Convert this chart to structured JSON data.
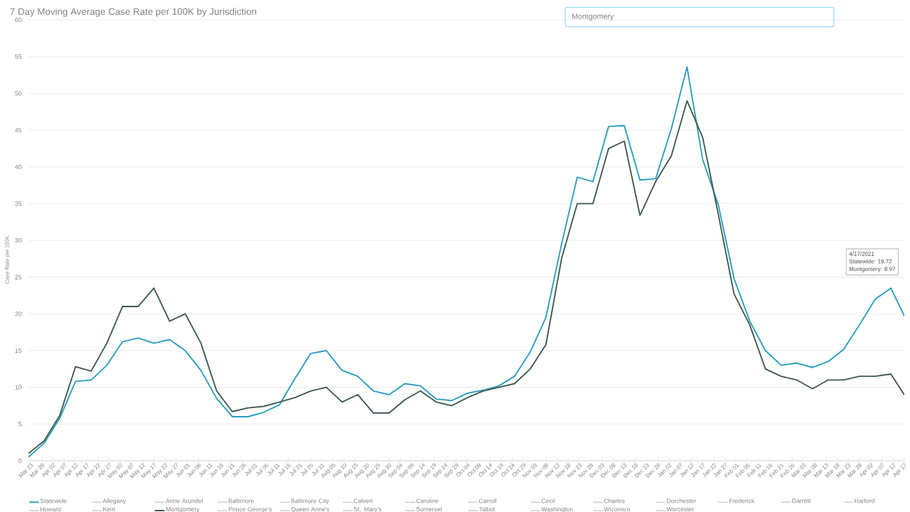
{
  "chart_data": {
    "type": "line",
    "title": "7 Day Moving Average Case Rate per 100K by Jurisdiction",
    "ylabel": "Case Rate per 100K",
    "annotations": [
      "Montgomery",
      "4/17/2021",
      "Statewide: 19.72",
      "Montgomery: 8.97"
    ],
    "x": [
      "2020-03-22",
      "2020-03-29",
      "2020-04-05",
      "2020-04-12",
      "2020-04-19",
      "2020-04-26",
      "2020-05-03",
      "2020-05-10",
      "2020-05-17",
      "2020-05-24",
      "2020-05-31",
      "2020-06-07",
      "2020-06-14",
      "2020-06-21",
      "2020-06-28",
      "2020-07-05",
      "2020-07-12",
      "2020-07-19",
      "2020-07-26",
      "2020-08-02",
      "2020-08-09",
      "2020-08-16",
      "2020-08-23",
      "2020-08-30",
      "2020-09-06",
      "2020-09-13",
      "2020-09-20",
      "2020-09-27",
      "2020-10-04",
      "2020-10-11",
      "2020-10-18",
      "2020-10-25",
      "2020-11-01",
      "2020-11-08",
      "2020-11-15",
      "2020-11-22",
      "2020-11-29",
      "2020-12-06",
      "2020-12-13",
      "2020-12-20",
      "2020-12-27",
      "2021-01-03",
      "2021-01-10",
      "2021-01-17",
      "2021-01-24",
      "2021-01-31",
      "2021-02-07",
      "2021-02-14",
      "2021-02-21",
      "2021-02-28",
      "2021-03-07",
      "2021-03-14",
      "2021-03-21",
      "2021-03-28",
      "2021-04-04",
      "2021-04-11",
      "2021-04-17"
    ],
    "series": [
      {
        "name": "Statewide",
        "color": "#2a9cc0",
        "values": [
          0.5,
          2.4,
          5.8,
          10.8,
          11.0,
          13.0,
          16.2,
          16.7,
          16.0,
          16.5,
          15.0,
          12.3,
          8.5,
          6.0,
          6.0,
          6.6,
          7.6,
          11.2,
          14.6,
          15.0,
          12.3,
          11.5,
          9.5,
          9.0,
          10.5,
          10.2,
          8.4,
          8.2,
          9.2,
          9.6,
          10.2,
          11.5,
          14.8,
          19.5,
          29.5,
          38.6,
          38.0,
          45.5,
          45.6,
          38.2,
          38.4,
          45.2,
          53.6,
          41.0,
          34.8,
          24.8,
          19.0,
          15.0,
          13.0,
          13.3,
          12.7,
          13.5,
          15.2,
          18.5,
          22.0,
          23.5,
          19.72
        ]
      },
      {
        "name": "Allegany",
        "color": "#c8c8c8",
        "values": [
          null,
          null,
          null,
          null,
          null,
          null,
          null,
          null,
          null,
          null,
          null,
          null,
          null,
          null,
          null,
          null,
          null,
          null,
          null,
          null,
          null,
          null,
          null,
          null,
          null,
          null,
          null,
          null,
          null,
          null,
          null,
          null,
          null,
          null,
          null,
          null,
          null,
          null,
          null,
          null,
          null,
          null,
          null,
          null,
          null,
          null,
          null,
          null,
          null,
          null,
          null,
          null,
          null,
          null,
          null,
          null,
          null
        ]
      },
      {
        "name": "Anne Arundel",
        "color": "#c8c8c8",
        "values": [
          null,
          null,
          null,
          null,
          null,
          null,
          null,
          null,
          null,
          null,
          null,
          null,
          null,
          null,
          null,
          null,
          null,
          null,
          null,
          null,
          null,
          null,
          null,
          null,
          null,
          null,
          null,
          null,
          null,
          null,
          null,
          null,
          null,
          null,
          null,
          null,
          null,
          null,
          null,
          null,
          null,
          null,
          null,
          null,
          null,
          null,
          null,
          null,
          null,
          null,
          null,
          null,
          null,
          null,
          null,
          null,
          null
        ]
      },
      {
        "name": "Baltimore",
        "color": "#c8c8c8",
        "values": [
          null,
          null,
          null,
          null,
          null,
          null,
          null,
          null,
          null,
          null,
          null,
          null,
          null,
          null,
          null,
          null,
          null,
          null,
          null,
          null,
          null,
          null,
          null,
          null,
          null,
          null,
          null,
          null,
          null,
          null,
          null,
          null,
          null,
          null,
          null,
          null,
          null,
          null,
          null,
          null,
          null,
          null,
          null,
          null,
          null,
          null,
          null,
          null,
          null,
          null,
          null,
          null,
          null,
          null,
          null,
          null,
          null
        ]
      },
      {
        "name": "Baltimore City",
        "color": "#c8c8c8",
        "values": [
          null,
          null,
          null,
          null,
          null,
          null,
          null,
          null,
          null,
          null,
          null,
          null,
          null,
          null,
          null,
          null,
          null,
          null,
          null,
          null,
          null,
          null,
          null,
          null,
          null,
          null,
          null,
          null,
          null,
          null,
          null,
          null,
          null,
          null,
          null,
          null,
          null,
          null,
          null,
          null,
          null,
          null,
          null,
          null,
          null,
          null,
          null,
          null,
          null,
          null,
          null,
          null,
          null,
          null,
          null,
          null,
          null
        ]
      },
      {
        "name": "Calvert",
        "color": "#c8c8c8",
        "values": [
          null,
          null,
          null,
          null,
          null,
          null,
          null,
          null,
          null,
          null,
          null,
          null,
          null,
          null,
          null,
          null,
          null,
          null,
          null,
          null,
          null,
          null,
          null,
          null,
          null,
          null,
          null,
          null,
          null,
          null,
          null,
          null,
          null,
          null,
          null,
          null,
          null,
          null,
          null,
          null,
          null,
          null,
          null,
          null,
          null,
          null,
          null,
          null,
          null,
          null,
          null,
          null,
          null,
          null,
          null,
          null,
          null
        ]
      },
      {
        "name": "Caroline",
        "color": "#c8c8c8",
        "values": [
          null,
          null,
          null,
          null,
          null,
          null,
          null,
          null,
          null,
          null,
          null,
          null,
          null,
          null,
          null,
          null,
          null,
          null,
          null,
          null,
          null,
          null,
          null,
          null,
          null,
          null,
          null,
          null,
          null,
          null,
          null,
          null,
          null,
          null,
          null,
          null,
          null,
          null,
          null,
          null,
          null,
          null,
          null,
          null,
          null,
          null,
          null,
          null,
          null,
          null,
          null,
          null,
          null,
          null,
          null,
          null,
          null
        ]
      },
      {
        "name": "Carroll",
        "color": "#c8c8c8",
        "values": [
          null,
          null,
          null,
          null,
          null,
          null,
          null,
          null,
          null,
          null,
          null,
          null,
          null,
          null,
          null,
          null,
          null,
          null,
          null,
          null,
          null,
          null,
          null,
          null,
          null,
          null,
          null,
          null,
          null,
          null,
          null,
          null,
          null,
          null,
          null,
          null,
          null,
          null,
          null,
          null,
          null,
          null,
          null,
          null,
          null,
          null,
          null,
          null,
          null,
          null,
          null,
          null,
          null,
          null,
          null,
          null,
          null
        ]
      },
      {
        "name": "Cecil",
        "color": "#c8c8c8",
        "values": [
          null,
          null,
          null,
          null,
          null,
          null,
          null,
          null,
          null,
          null,
          null,
          null,
          null,
          null,
          null,
          null,
          null,
          null,
          null,
          null,
          null,
          null,
          null,
          null,
          null,
          null,
          null,
          null,
          null,
          null,
          null,
          null,
          null,
          null,
          null,
          null,
          null,
          null,
          null,
          null,
          null,
          null,
          null,
          null,
          null,
          null,
          null,
          null,
          null,
          null,
          null,
          null,
          null,
          null,
          null,
          null,
          null
        ]
      },
      {
        "name": "Charles",
        "color": "#c8c8c8",
        "values": [
          null,
          null,
          null,
          null,
          null,
          null,
          null,
          null,
          null,
          null,
          null,
          null,
          null,
          null,
          null,
          null,
          null,
          null,
          null,
          null,
          null,
          null,
          null,
          null,
          null,
          null,
          null,
          null,
          null,
          null,
          null,
          null,
          null,
          null,
          null,
          null,
          null,
          null,
          null,
          null,
          null,
          null,
          null,
          null,
          null,
          null,
          null,
          null,
          null,
          null,
          null,
          null,
          null,
          null,
          null,
          null,
          null
        ]
      },
      {
        "name": "Dorchester",
        "color": "#c8c8c8",
        "values": [
          null,
          null,
          null,
          null,
          null,
          null,
          null,
          null,
          null,
          null,
          null,
          null,
          null,
          null,
          null,
          null,
          null,
          null,
          null,
          null,
          null,
          null,
          null,
          null,
          null,
          null,
          null,
          null,
          null,
          null,
          null,
          null,
          null,
          null,
          null,
          null,
          null,
          null,
          null,
          null,
          null,
          null,
          null,
          null,
          null,
          null,
          null,
          null,
          null,
          null,
          null,
          null,
          null,
          null,
          null,
          null,
          null
        ]
      },
      {
        "name": "Frederick",
        "color": "#c8c8c8",
        "values": [
          null,
          null,
          null,
          null,
          null,
          null,
          null,
          null,
          null,
          null,
          null,
          null,
          null,
          null,
          null,
          null,
          null,
          null,
          null,
          null,
          null,
          null,
          null,
          null,
          null,
          null,
          null,
          null,
          null,
          null,
          null,
          null,
          null,
          null,
          null,
          null,
          null,
          null,
          null,
          null,
          null,
          null,
          null,
          null,
          null,
          null,
          null,
          null,
          null,
          null,
          null,
          null,
          null,
          null,
          null,
          null,
          null
        ]
      },
      {
        "name": "Garrett",
        "color": "#c8c8c8",
        "values": [
          null,
          null,
          null,
          null,
          null,
          null,
          null,
          null,
          null,
          null,
          null,
          null,
          null,
          null,
          null,
          null,
          null,
          null,
          null,
          null,
          null,
          null,
          null,
          null,
          null,
          null,
          null,
          null,
          null,
          null,
          null,
          null,
          null,
          null,
          null,
          null,
          null,
          null,
          null,
          null,
          null,
          null,
          null,
          null,
          null,
          null,
          null,
          null,
          null,
          null,
          null,
          null,
          null,
          null,
          null,
          null,
          null
        ]
      },
      {
        "name": "Harford",
        "color": "#c8c8c8",
        "values": [
          null,
          null,
          null,
          null,
          null,
          null,
          null,
          null,
          null,
          null,
          null,
          null,
          null,
          null,
          null,
          null,
          null,
          null,
          null,
          null,
          null,
          null,
          null,
          null,
          null,
          null,
          null,
          null,
          null,
          null,
          null,
          null,
          null,
          null,
          null,
          null,
          null,
          null,
          null,
          null,
          null,
          null,
          null,
          null,
          null,
          null,
          null,
          null,
          null,
          null,
          null,
          null,
          null,
          null,
          null,
          null,
          null
        ]
      },
      {
        "name": "Howard",
        "color": "#c8c8c8",
        "values": [
          null,
          null,
          null,
          null,
          null,
          null,
          null,
          null,
          null,
          null,
          null,
          null,
          null,
          null,
          null,
          null,
          null,
          null,
          null,
          null,
          null,
          null,
          null,
          null,
          null,
          null,
          null,
          null,
          null,
          null,
          null,
          null,
          null,
          null,
          null,
          null,
          null,
          null,
          null,
          null,
          null,
          null,
          null,
          null,
          null,
          null,
          null,
          null,
          null,
          null,
          null,
          null,
          null,
          null,
          null,
          null,
          null
        ]
      },
      {
        "name": "Kent",
        "color": "#c8c8c8",
        "values": [
          null,
          null,
          null,
          null,
          null,
          null,
          null,
          null,
          null,
          null,
          null,
          null,
          null,
          null,
          null,
          null,
          null,
          null,
          null,
          null,
          null,
          null,
          null,
          null,
          null,
          null,
          null,
          null,
          null,
          null,
          null,
          null,
          null,
          null,
          null,
          null,
          null,
          null,
          null,
          null,
          null,
          null,
          null,
          null,
          null,
          null,
          null,
          null,
          null,
          null,
          null,
          null,
          null,
          null,
          null,
          null,
          null
        ]
      },
      {
        "name": "Montgomery",
        "color": "#3d5a50",
        "values": [
          1.0,
          2.7,
          6.2,
          12.8,
          12.2,
          16.0,
          21.0,
          21.0,
          23.5,
          19.0,
          20.0,
          16.0,
          9.5,
          6.7,
          7.2,
          7.4,
          8.0,
          8.6,
          9.5,
          10.0,
          8.0,
          9.0,
          6.5,
          6.5,
          8.3,
          9.5,
          8.0,
          7.5,
          8.6,
          9.5,
          10.0,
          10.5,
          12.5,
          15.8,
          27.5,
          35.0,
          35.0,
          42.5,
          43.5,
          33.4,
          38.0,
          41.5,
          49.0,
          44.0,
          33.5,
          22.7,
          18.5,
          12.5,
          11.5,
          11.0,
          9.8,
          11.0,
          11.0,
          11.5,
          11.5,
          11.8,
          8.97
        ]
      },
      {
        "name": "Prince George's",
        "color": "#c8c8c8",
        "values": [
          null,
          null,
          null,
          null,
          null,
          null,
          null,
          null,
          null,
          null,
          null,
          null,
          null,
          null,
          null,
          null,
          null,
          null,
          null,
          null,
          null,
          null,
          null,
          null,
          null,
          null,
          null,
          null,
          null,
          null,
          null,
          null,
          null,
          null,
          null,
          null,
          null,
          null,
          null,
          null,
          null,
          null,
          null,
          null,
          null,
          null,
          null,
          null,
          null,
          null,
          null,
          null,
          null,
          null,
          null,
          null,
          null
        ]
      },
      {
        "name": "Queen Anne's",
        "color": "#c8c8c8",
        "values": [
          null,
          null,
          null,
          null,
          null,
          null,
          null,
          null,
          null,
          null,
          null,
          null,
          null,
          null,
          null,
          null,
          null,
          null,
          null,
          null,
          null,
          null,
          null,
          null,
          null,
          null,
          null,
          null,
          null,
          null,
          null,
          null,
          null,
          null,
          null,
          null,
          null,
          null,
          null,
          null,
          null,
          null,
          null,
          null,
          null,
          null,
          null,
          null,
          null,
          null,
          null,
          null,
          null,
          null,
          null,
          null,
          null
        ]
      },
      {
        "name": "St. Mary's",
        "color": "#c8c8c8",
        "values": [
          null,
          null,
          null,
          null,
          null,
          null,
          null,
          null,
          null,
          null,
          null,
          null,
          null,
          null,
          null,
          null,
          null,
          null,
          null,
          null,
          null,
          null,
          null,
          null,
          null,
          null,
          null,
          null,
          null,
          null,
          null,
          null,
          null,
          null,
          null,
          null,
          null,
          null,
          null,
          null,
          null,
          null,
          null,
          null,
          null,
          null,
          null,
          null,
          null,
          null,
          null,
          null,
          null,
          null,
          null,
          null,
          null
        ]
      },
      {
        "name": "Somerset",
        "color": "#c8c8c8",
        "values": [
          null,
          null,
          null,
          null,
          null,
          null,
          null,
          null,
          null,
          null,
          null,
          null,
          null,
          null,
          null,
          null,
          null,
          null,
          null,
          null,
          null,
          null,
          null,
          null,
          null,
          null,
          null,
          null,
          null,
          null,
          null,
          null,
          null,
          null,
          null,
          null,
          null,
          null,
          null,
          null,
          null,
          null,
          null,
          null,
          null,
          null,
          null,
          null,
          null,
          null,
          null,
          null,
          null,
          null,
          null,
          null,
          null
        ]
      },
      {
        "name": "Talbot",
        "color": "#c8c8c8",
        "values": [
          null,
          null,
          null,
          null,
          null,
          null,
          null,
          null,
          null,
          null,
          null,
          null,
          null,
          null,
          null,
          null,
          null,
          null,
          null,
          null,
          null,
          null,
          null,
          null,
          null,
          null,
          null,
          null,
          null,
          null,
          null,
          null,
          null,
          null,
          null,
          null,
          null,
          null,
          null,
          null,
          null,
          null,
          null,
          null,
          null,
          null,
          null,
          null,
          null,
          null,
          null,
          null,
          null,
          null,
          null,
          null,
          null
        ]
      },
      {
        "name": "Washington",
        "color": "#c8c8c8",
        "values": [
          null,
          null,
          null,
          null,
          null,
          null,
          null,
          null,
          null,
          null,
          null,
          null,
          null,
          null,
          null,
          null,
          null,
          null,
          null,
          null,
          null,
          null,
          null,
          null,
          null,
          null,
          null,
          null,
          null,
          null,
          null,
          null,
          null,
          null,
          null,
          null,
          null,
          null,
          null,
          null,
          null,
          null,
          null,
          null,
          null,
          null,
          null,
          null,
          null,
          null,
          null,
          null,
          null,
          null,
          null,
          null,
          null
        ]
      },
      {
        "name": "Wicomico",
        "color": "#c8c8c8",
        "values": [
          null,
          null,
          null,
          null,
          null,
          null,
          null,
          null,
          null,
          null,
          null,
          null,
          null,
          null,
          null,
          null,
          null,
          null,
          null,
          null,
          null,
          null,
          null,
          null,
          null,
          null,
          null,
          null,
          null,
          null,
          null,
          null,
          null,
          null,
          null,
          null,
          null,
          null,
          null,
          null,
          null,
          null,
          null,
          null,
          null,
          null,
          null,
          null,
          null,
          null,
          null,
          null,
          null,
          null,
          null,
          null,
          null
        ]
      },
      {
        "name": "Worcester",
        "color": "#c8c8c8",
        "values": [
          null,
          null,
          null,
          null,
          null,
          null,
          null,
          null,
          null,
          null,
          null,
          null,
          null,
          null,
          null,
          null,
          null,
          null,
          null,
          null,
          null,
          null,
          null,
          null,
          null,
          null,
          null,
          null,
          null,
          null,
          null,
          null,
          null,
          null,
          null,
          null,
          null,
          null,
          null,
          null,
          null,
          null,
          null,
          null,
          null,
          null,
          null,
          null,
          null,
          null,
          null,
          null,
          null,
          null,
          null,
          null,
          null
        ]
      }
    ],
    "xlim": [
      "2020-03-22",
      "2021-04-17"
    ],
    "xticks": [
      {
        "value": "2020-03-23",
        "label": "Mar 23"
      },
      {
        "value": "2020-03-28",
        "label": "Mar 28"
      },
      {
        "value": "2020-04-02",
        "label": "Apr 02"
      },
      {
        "value": "2020-04-07",
        "label": "Apr 07"
      },
      {
        "value": "2020-04-12",
        "label": "Apr 12"
      },
      {
        "value": "2020-04-17",
        "label": "Apr 17"
      },
      {
        "value": "2020-04-22",
        "label": "Apr 22"
      },
      {
        "value": "2020-04-27",
        "label": "Apr 27"
      },
      {
        "value": "2020-05-02",
        "label": "May 02"
      },
      {
        "value": "2020-05-07",
        "label": "May 07"
      },
      {
        "value": "2020-05-12",
        "label": "May 12"
      },
      {
        "value": "2020-05-17",
        "label": "May 17"
      },
      {
        "value": "2020-05-22",
        "label": "May 22"
      },
      {
        "value": "2020-05-27",
        "label": "May 27"
      },
      {
        "value": "2020-06-01",
        "label": "Jun 01"
      },
      {
        "value": "2020-06-06",
        "label": "Jun 06"
      },
      {
        "value": "2020-06-11",
        "label": "Jun 11"
      },
      {
        "value": "2020-06-16",
        "label": "Jun 16"
      },
      {
        "value": "2020-06-21",
        "label": "Jun 21"
      },
      {
        "value": "2020-06-26",
        "label": "Jun 26"
      },
      {
        "value": "2020-07-01",
        "label": "Jul 01"
      },
      {
        "value": "2020-07-06",
        "label": "Jul 06"
      },
      {
        "value": "2020-07-11",
        "label": "Jul 11"
      },
      {
        "value": "2020-07-16",
        "label": "Jul 16"
      },
      {
        "value": "2020-07-21",
        "label": "Jul 21"
      },
      {
        "value": "2020-07-26",
        "label": "Jul 26"
      },
      {
        "value": "2020-07-31",
        "label": "Jul 31"
      },
      {
        "value": "2020-08-05",
        "label": "Aug 05"
      },
      {
        "value": "2020-08-10",
        "label": "Aug 10"
      },
      {
        "value": "2020-08-15",
        "label": "Aug 15"
      },
      {
        "value": "2020-08-20",
        "label": "Aug 20"
      },
      {
        "value": "2020-08-25",
        "label": "Aug 25"
      },
      {
        "value": "2020-08-30",
        "label": "Aug 30"
      },
      {
        "value": "2020-09-04",
        "label": "Sep 04"
      },
      {
        "value": "2020-09-09",
        "label": "Sep 09"
      },
      {
        "value": "2020-09-14",
        "label": "Sep 14"
      },
      {
        "value": "2020-09-19",
        "label": "Sep 19"
      },
      {
        "value": "2020-09-24",
        "label": "Sep 24"
      },
      {
        "value": "2020-09-29",
        "label": "Sep 29"
      },
      {
        "value": "2020-10-04",
        "label": "Oct 04"
      },
      {
        "value": "2020-10-09",
        "label": "Oct 09"
      },
      {
        "value": "2020-10-14",
        "label": "Oct 14"
      },
      {
        "value": "2020-10-19",
        "label": "Oct 19"
      },
      {
        "value": "2020-10-24",
        "label": "Oct 24"
      },
      {
        "value": "2020-10-29",
        "label": "Oct 29"
      },
      {
        "value": "2020-11-03",
        "label": "Nov 03"
      },
      {
        "value": "2020-11-08",
        "label": "Nov 08"
      },
      {
        "value": "2020-11-13",
        "label": "Nov 13"
      },
      {
        "value": "2020-11-18",
        "label": "Nov 18"
      },
      {
        "value": "2020-11-23",
        "label": "Nov 23"
      },
      {
        "value": "2020-11-28",
        "label": "Nov 28"
      },
      {
        "value": "2020-12-03",
        "label": "Dec 03"
      },
      {
        "value": "2020-12-08",
        "label": "Dec 08"
      },
      {
        "value": "2020-12-13",
        "label": "Dec 13"
      },
      {
        "value": "2020-12-18",
        "label": "Dec 18"
      },
      {
        "value": "2020-12-23",
        "label": "Dec 23"
      },
      {
        "value": "2020-12-28",
        "label": "Dec 28"
      },
      {
        "value": "2021-01-02",
        "label": "Jan 02"
      },
      {
        "value": "2021-01-07",
        "label": "Jan 07"
      },
      {
        "value": "2021-01-12",
        "label": "Jan 12"
      },
      {
        "value": "2021-01-17",
        "label": "Jan 17"
      },
      {
        "value": "2021-01-22",
        "label": "Jan 22"
      },
      {
        "value": "2021-01-27",
        "label": "Jan 27"
      },
      {
        "value": "2021-02-01",
        "label": "Feb 01"
      },
      {
        "value": "2021-02-06",
        "label": "Feb 06"
      },
      {
        "value": "2021-02-11",
        "label": "Feb 11"
      },
      {
        "value": "2021-02-16",
        "label": "Feb 16"
      },
      {
        "value": "2021-02-21",
        "label": "Feb 21"
      },
      {
        "value": "2021-02-26",
        "label": "Feb 26"
      },
      {
        "value": "2021-03-03",
        "label": "Mar 03"
      },
      {
        "value": "2021-03-08",
        "label": "Mar 08"
      },
      {
        "value": "2021-03-13",
        "label": "Mar 13"
      },
      {
        "value": "2021-03-18",
        "label": "Mar 18"
      },
      {
        "value": "2021-03-23",
        "label": "Mar 23"
      },
      {
        "value": "2021-03-28",
        "label": "Mar 28"
      },
      {
        "value": "2021-04-02",
        "label": "Apr 02"
      },
      {
        "value": "2021-04-07",
        "label": "Apr 07"
      },
      {
        "value": "2021-04-12",
        "label": "Apr 12"
      },
      {
        "value": "2021-04-17",
        "label": "Apr 17"
      }
    ],
    "ylim": [
      0,
      60
    ],
    "yticks": [
      0,
      5,
      10,
      15,
      20,
      25,
      30,
      35,
      40,
      45,
      50,
      55,
      60
    ],
    "grid": "y",
    "legend": "bottom"
  }
}
